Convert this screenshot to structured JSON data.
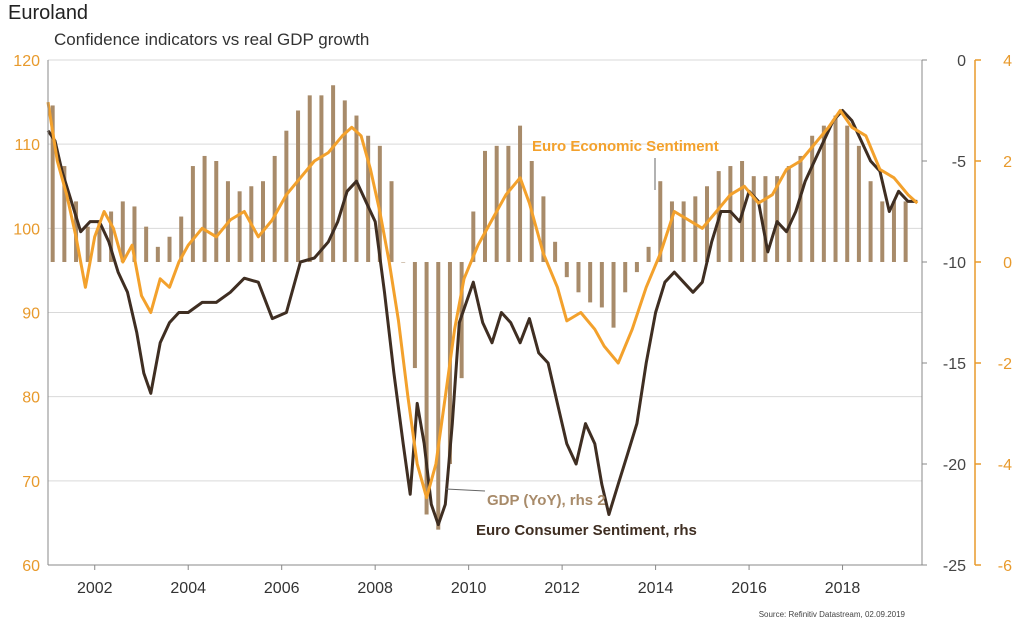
{
  "header": {
    "title": "Euroland",
    "subtitle": "Confidence indicators vs real GDP growth"
  },
  "footer": {
    "source": "Source: Refinitiv Datastream, 02.09.2019"
  },
  "colors": {
    "economic": "#f3a12c",
    "consumer": "#3f2e22",
    "gdp": "#a88b6a",
    "grid": "#d9d9d9",
    "left_axis": "#e89a2c",
    "right1_axis": "#444444",
    "right2_axis": "#e89a2c"
  },
  "chart_data": {
    "type": "line",
    "title": "Euroland",
    "subtitle": "Confidence indicators vs real GDP growth",
    "x_ticks": [
      "2002",
      "2004",
      "2006",
      "2008",
      "2010",
      "2012",
      "2014",
      "2016",
      "2018"
    ],
    "xlim": [
      2001.0,
      2019.7
    ],
    "axes": {
      "left": {
        "lim": [
          60,
          120
        ],
        "ticks": [
          "60",
          "70",
          "80",
          "90",
          "100",
          "110",
          "120"
        ]
      },
      "right1": {
        "lim": [
          -25,
          0
        ],
        "ticks": [
          "-25",
          "-20",
          "-15",
          "-10",
          "-5",
          "0"
        ]
      },
      "right2": {
        "lim": [
          -6,
          4
        ],
        "ticks": [
          "-6",
          "-4",
          "-2",
          "0",
          "2",
          "4"
        ]
      }
    },
    "grid": "horizontal",
    "annotations": {
      "economic": "Euro Economic Sentiment",
      "gdp": "GDP (YoY), rhs 2",
      "consumer": "Euro Consumer Sentiment, rhs"
    },
    "series": [
      {
        "name": "Euro Economic Sentiment",
        "axis": "left",
        "type": "line",
        "x": [
          2001.0,
          2001.2,
          2001.4,
          2001.6,
          2001.8,
          2002.0,
          2002.2,
          2002.4,
          2002.6,
          2002.8,
          2003.0,
          2003.2,
          2003.4,
          2003.6,
          2003.8,
          2004.0,
          2004.3,
          2004.6,
          2004.9,
          2005.2,
          2005.5,
          2005.8,
          2006.1,
          2006.4,
          2006.7,
          2007.0,
          2007.3,
          2007.5,
          2007.7,
          2007.9,
          2008.1,
          2008.3,
          2008.5,
          2008.7,
          2008.9,
          2009.1,
          2009.3,
          2009.5,
          2009.7,
          2009.9,
          2010.2,
          2010.5,
          2010.8,
          2011.1,
          2011.3,
          2011.6,
          2011.9,
          2012.1,
          2012.4,
          2012.7,
          2012.9,
          2013.2,
          2013.5,
          2013.8,
          2014.1,
          2014.4,
          2014.7,
          2015.0,
          2015.3,
          2015.6,
          2015.9,
          2016.2,
          2016.5,
          2016.8,
          2017.1,
          2017.4,
          2017.7,
          2017.95,
          2018.2,
          2018.5,
          2018.8,
          2019.1,
          2019.4,
          2019.6
        ],
        "values": [
          115,
          108,
          104,
          99,
          93,
          99,
          102,
          100,
          96,
          98,
          92,
          90,
          94,
          93,
          96,
          98,
          100,
          99,
          101,
          102,
          99,
          101,
          104,
          106,
          108,
          109,
          111,
          112,
          111,
          107,
          102,
          96,
          89,
          80,
          72,
          68,
          72,
          80,
          88,
          94,
          98,
          101,
          104,
          106,
          103,
          97,
          93,
          89,
          90,
          88,
          86,
          84,
          88,
          93,
          97,
          102,
          101,
          100,
          102,
          104,
          105,
          103,
          104,
          107,
          108,
          110,
          112,
          114,
          112,
          111,
          107,
          106,
          104,
          103
        ]
      },
      {
        "name": "Euro Consumer Sentiment, rhs",
        "axis": "right1",
        "type": "line",
        "x": [
          2001.0,
          2001.15,
          2001.3,
          2001.5,
          2001.7,
          2001.9,
          2002.1,
          2002.3,
          2002.5,
          2002.7,
          2002.9,
          2003.05,
          2003.2,
          2003.4,
          2003.6,
          2003.8,
          2004.0,
          2004.3,
          2004.6,
          2004.9,
          2005.2,
          2005.5,
          2005.8,
          2006.1,
          2006.4,
          2006.7,
          2007.0,
          2007.2,
          2007.4,
          2007.6,
          2007.8,
          2008.0,
          2008.2,
          2008.4,
          2008.6,
          2008.75,
          2008.9,
          2009.05,
          2009.2,
          2009.35,
          2009.5,
          2009.65,
          2009.8,
          2009.95,
          2010.1,
          2010.3,
          2010.5,
          2010.7,
          2010.9,
          2011.1,
          2011.3,
          2011.5,
          2011.7,
          2011.9,
          2012.1,
          2012.3,
          2012.5,
          2012.7,
          2012.85,
          2013.0,
          2013.2,
          2013.4,
          2013.6,
          2013.8,
          2014.0,
          2014.2,
          2014.4,
          2014.6,
          2014.8,
          2015.0,
          2015.2,
          2015.4,
          2015.6,
          2015.8,
          2016.0,
          2016.2,
          2016.4,
          2016.6,
          2016.8,
          2017.0,
          2017.2,
          2017.4,
          2017.6,
          2017.8,
          2018.0,
          2018.2,
          2018.4,
          2018.6,
          2018.8,
          2019.0,
          2019.2,
          2019.4,
          2019.6
        ],
        "values": [
          -3.5,
          -4.0,
          -5.5,
          -7.0,
          -8.5,
          -8.0,
          -8.0,
          -9.0,
          -10.5,
          -11.5,
          -13.5,
          -15.5,
          -16.5,
          -14.0,
          -13.0,
          -12.5,
          -12.5,
          -12.0,
          -12.0,
          -11.5,
          -10.8,
          -11.0,
          -12.8,
          -12.5,
          -10.0,
          -9.8,
          -9.0,
          -8.0,
          -6.5,
          -6.0,
          -7.0,
          -8.0,
          -11.5,
          -15.5,
          -19.0,
          -21.5,
          -17.0,
          -19.0,
          -22.0,
          -23.0,
          -22.0,
          -18.0,
          -13.0,
          -12.0,
          -11.0,
          -13.0,
          -14.0,
          -12.5,
          -13.0,
          -14.0,
          -12.8,
          -14.5,
          -15.0,
          -17.0,
          -19.0,
          -20.0,
          -18.0,
          -19.0,
          -21.0,
          -22.5,
          -21.0,
          -19.5,
          -18.0,
          -15.0,
          -12.5,
          -11.0,
          -10.5,
          -11.0,
          -11.5,
          -11.0,
          -9.0,
          -7.5,
          -7.5,
          -8.0,
          -6.5,
          -7.0,
          -9.5,
          -8.0,
          -8.5,
          -7.5,
          -6.0,
          -5.0,
          -4.0,
          -3.0,
          -2.5,
          -3.0,
          -4.0,
          -5.0,
          -5.5,
          -7.5,
          -6.5,
          -7.0,
          -7.0
        ]
      },
      {
        "name": "GDP (YoY), rhs 2",
        "axis": "right2",
        "type": "bar",
        "x": [
          2001.1,
          2001.35,
          2001.6,
          2001.85,
          2002.1,
          2002.35,
          2002.6,
          2002.85,
          2003.1,
          2003.35,
          2003.6,
          2003.85,
          2004.1,
          2004.35,
          2004.6,
          2004.85,
          2005.1,
          2005.35,
          2005.6,
          2005.85,
          2006.1,
          2006.35,
          2006.6,
          2006.85,
          2007.1,
          2007.35,
          2007.6,
          2007.85,
          2008.1,
          2008.35,
          2008.6,
          2008.85,
          2009.1,
          2009.35,
          2009.6,
          2009.85,
          2010.1,
          2010.35,
          2010.6,
          2010.85,
          2011.1,
          2011.35,
          2011.6,
          2011.85,
          2012.1,
          2012.35,
          2012.6,
          2012.85,
          2013.1,
          2013.35,
          2013.6,
          2013.85,
          2014.1,
          2014.35,
          2014.6,
          2014.85,
          2015.1,
          2015.35,
          2015.6,
          2015.85,
          2016.1,
          2016.35,
          2016.6,
          2016.85,
          2017.1,
          2017.35,
          2017.6,
          2017.85,
          2018.1,
          2018.35,
          2018.6,
          2018.85,
          2019.1,
          2019.35
        ],
        "values": [
          3.1,
          1.9,
          1.2,
          0.7,
          0.8,
          1.0,
          1.2,
          1.1,
          0.7,
          0.3,
          0.5,
          0.9,
          1.9,
          2.1,
          2.0,
          1.6,
          1.4,
          1.5,
          1.6,
          2.1,
          2.6,
          3.0,
          3.3,
          3.3,
          3.5,
          3.2,
          2.9,
          2.5,
          2.3,
          1.6,
          0.0,
          -2.1,
          -5.0,
          -5.3,
          -4.0,
          -2.3,
          1.0,
          2.2,
          2.3,
          2.3,
          2.7,
          2.0,
          1.3,
          0.4,
          -0.3,
          -0.6,
          -0.8,
          -0.9,
          -1.3,
          -0.6,
          -0.2,
          0.3,
          1.6,
          1.2,
          1.2,
          1.3,
          1.5,
          1.8,
          1.9,
          2.0,
          1.7,
          1.7,
          1.7,
          1.9,
          2.1,
          2.5,
          2.7,
          2.9,
          2.7,
          2.3,
          1.6,
          1.2,
          1.2,
          1.2
        ]
      }
    ]
  }
}
